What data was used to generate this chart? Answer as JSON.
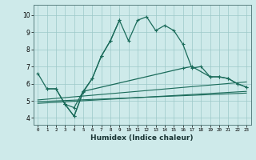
{
  "xlabel": "Humidex (Indice chaleur)",
  "bg_color": "#ceeaea",
  "grid_color": "#9dc8c8",
  "line_color": "#1a6b5a",
  "x_ticks": [
    0,
    1,
    2,
    3,
    4,
    5,
    6,
    7,
    8,
    9,
    10,
    11,
    12,
    13,
    14,
    15,
    16,
    17,
    18,
    19,
    20,
    21,
    22,
    23
  ],
  "y_ticks": [
    4,
    5,
    6,
    7,
    8,
    9,
    10
  ],
  "ylim": [
    3.6,
    10.6
  ],
  "xlim": [
    -0.5,
    23.5
  ],
  "main_x": [
    0,
    1,
    2,
    3,
    4,
    5,
    6,
    7,
    8,
    9,
    10,
    11,
    12,
    13,
    14,
    15,
    16,
    17,
    18,
    19,
    20,
    21,
    22,
    23
  ],
  "main_y": [
    6.6,
    5.7,
    5.7,
    4.8,
    4.1,
    5.5,
    6.3,
    7.6,
    8.5,
    9.7,
    8.5,
    9.7,
    9.9,
    9.1,
    9.4,
    9.1,
    8.3,
    6.9,
    7.0,
    6.4,
    6.4,
    6.3,
    6.0,
    5.8
  ],
  "line2_x": [
    1,
    2,
    3,
    4,
    5,
    6,
    7,
    8,
    9
  ],
  "line2_y": [
    5.7,
    5.7,
    4.8,
    4.6,
    5.55,
    6.3,
    7.6,
    8.5,
    9.7
  ],
  "line3_x": [
    3,
    4,
    5,
    16,
    17,
    19,
    20,
    21,
    22,
    23
  ],
  "line3_y": [
    4.8,
    4.1,
    5.55,
    6.9,
    7.0,
    6.4,
    6.4,
    6.3,
    6.0,
    5.8
  ],
  "trend1_x": [
    0,
    23
  ],
  "trend1_y": [
    4.85,
    5.55
  ],
  "trend2_x": [
    0,
    23
  ],
  "trend2_y": [
    4.95,
    5.45
  ],
  "trend3_x": [
    0,
    23
  ],
  "trend3_y": [
    5.05,
    6.1
  ]
}
